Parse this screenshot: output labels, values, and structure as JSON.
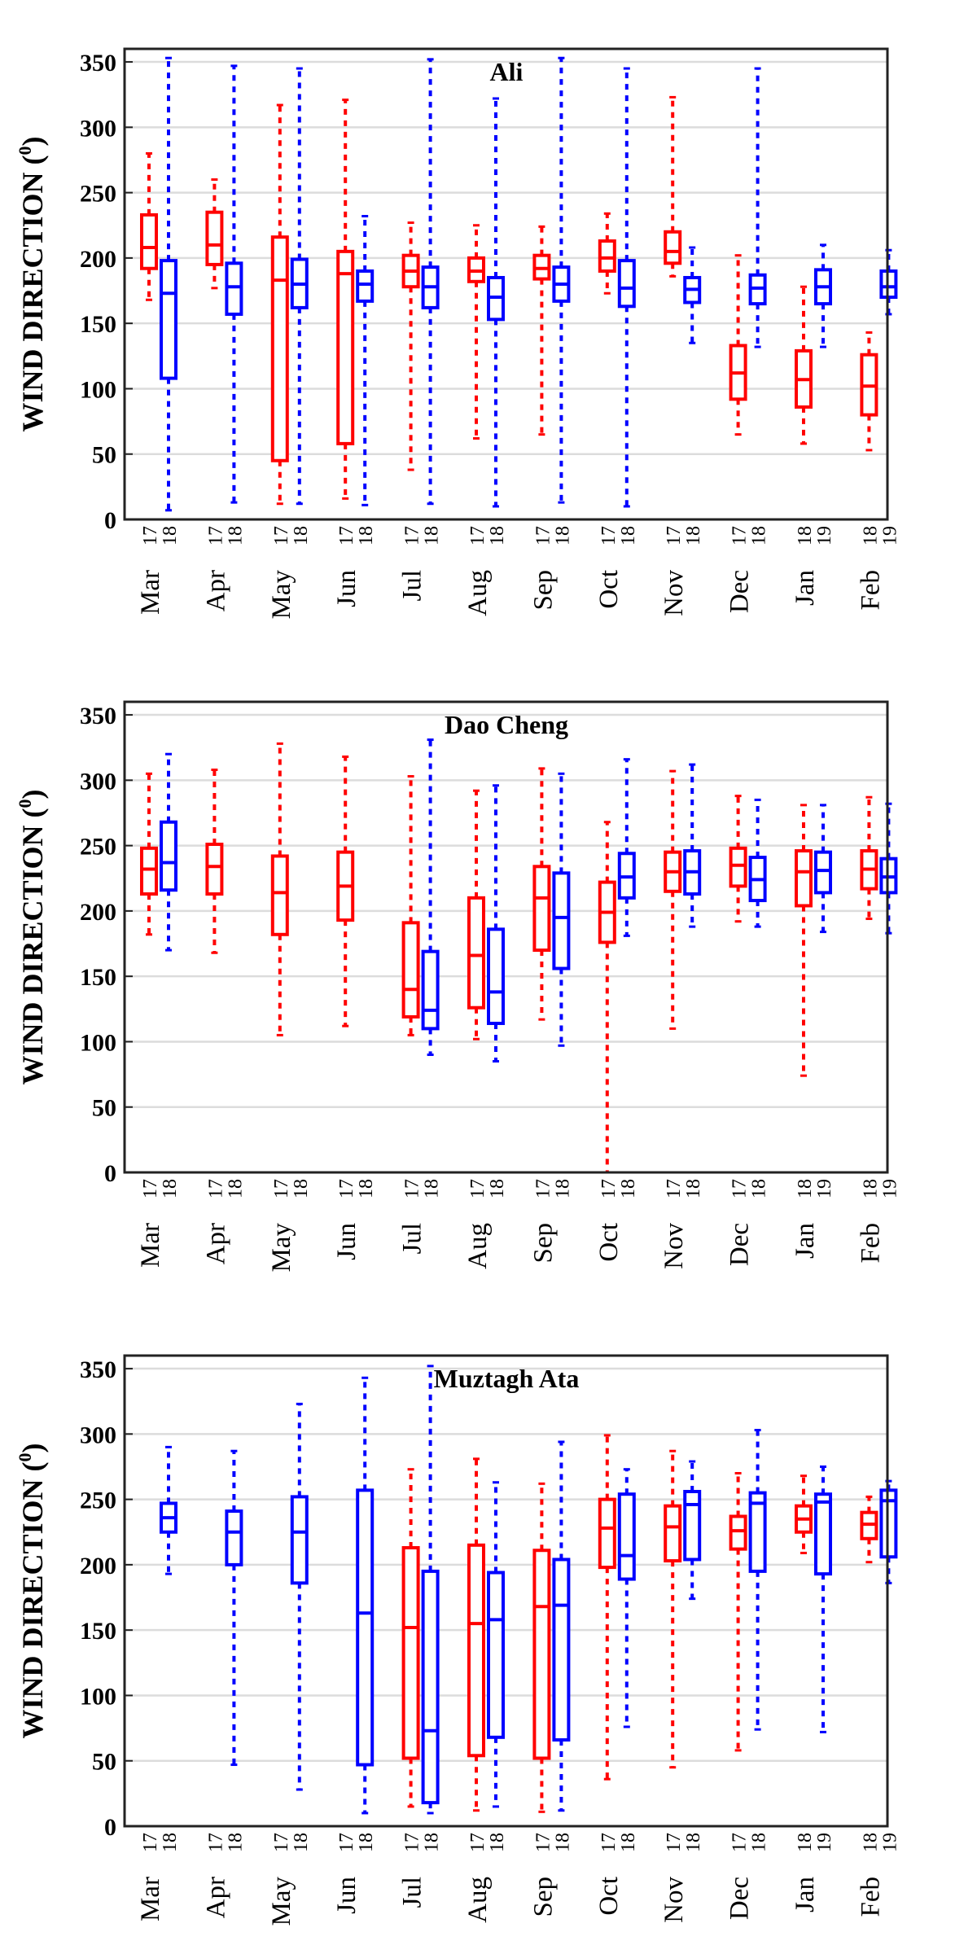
{
  "chart_data": [
    {
      "type": "boxplot",
      "title": "Ali",
      "ylabel": "WIND DIRECTION (",
      "ylabel_sup": "0",
      "ylabel_end": ")",
      "ylim": [
        0,
        360
      ],
      "yticks": [
        0,
        50,
        100,
        150,
        200,
        250,
        300,
        350
      ],
      "grid": true,
      "months": [
        "Mar",
        "Apr",
        "May",
        "Jun",
        "Jul",
        "Aug",
        "Sep",
        "Oct",
        "Nov",
        "Dec",
        "Jan",
        "Feb"
      ],
      "year_labels": [
        [
          "17",
          "18"
        ],
        [
          "17",
          "18"
        ],
        [
          "17",
          "18"
        ],
        [
          "17",
          "18"
        ],
        [
          "17",
          "18"
        ],
        [
          "17",
          "18"
        ],
        [
          "17",
          "18"
        ],
        [
          "17",
          "18"
        ],
        [
          "17",
          "18"
        ],
        [
          "17",
          "18"
        ],
        [
          "18",
          "19"
        ],
        [
          "18",
          "19"
        ]
      ],
      "series": [
        {
          "name": "first year",
          "color": "#ff0000",
          "boxes": [
            {
              "min": 168,
              "q1": 192,
              "med": 208,
              "q3": 233,
              "max": 280
            },
            {
              "min": 177,
              "q1": 195,
              "med": 210,
              "q3": 235,
              "max": 260
            },
            {
              "min": 12,
              "q1": 45,
              "med": 183,
              "q3": 216,
              "max": 317
            },
            {
              "min": 16,
              "q1": 58,
              "med": 188,
              "q3": 205,
              "max": 321
            },
            {
              "min": 38,
              "q1": 178,
              "med": 190,
              "q3": 202,
              "max": 227
            },
            {
              "min": 62,
              "q1": 182,
              "med": 190,
              "q3": 200,
              "max": 225
            },
            {
              "min": 65,
              "q1": 184,
              "med": 192,
              "q3": 202,
              "max": 224
            },
            {
              "min": 173,
              "q1": 190,
              "med": 200,
              "q3": 213,
              "max": 234
            },
            {
              "min": 186,
              "q1": 196,
              "med": 205,
              "q3": 220,
              "max": 323
            },
            {
              "min": 65,
              "q1": 92,
              "med": 112,
              "q3": 133,
              "max": 202
            },
            {
              "min": 58,
              "q1": 86,
              "med": 107,
              "q3": 129,
              "max": 178
            },
            {
              "min": 53,
              "q1": 80,
              "med": 102,
              "q3": 126,
              "max": 143
            }
          ]
        },
        {
          "name": "second year",
          "color": "#0000ff",
          "boxes": [
            {
              "min": 7,
              "q1": 108,
              "med": 173,
              "q3": 198,
              "max": 353
            },
            {
              "min": 13,
              "q1": 157,
              "med": 178,
              "q3": 196,
              "max": 347
            },
            {
              "min": 12,
              "q1": 162,
              "med": 180,
              "q3": 199,
              "max": 345
            },
            {
              "min": 11,
              "q1": 167,
              "med": 180,
              "q3": 190,
              "max": 232
            },
            {
              "min": 12,
              "q1": 162,
              "med": 178,
              "q3": 193,
              "max": 352
            },
            {
              "min": 10,
              "q1": 153,
              "med": 170,
              "q3": 185,
              "max": 322
            },
            {
              "min": 13,
              "q1": 167,
              "med": 180,
              "q3": 193,
              "max": 353
            },
            {
              "min": 10,
              "q1": 163,
              "med": 177,
              "q3": 198,
              "max": 345
            },
            {
              "min": 135,
              "q1": 166,
              "med": 176,
              "q3": 185,
              "max": 208
            },
            {
              "min": 132,
              "q1": 165,
              "med": 177,
              "q3": 187,
              "max": 345
            },
            {
              "min": 132,
              "q1": 165,
              "med": 178,
              "q3": 191,
              "max": 210
            },
            {
              "min": 157,
              "q1": 170,
              "med": 178,
              "q3": 190,
              "max": 206
            }
          ]
        }
      ]
    },
    {
      "type": "boxplot",
      "title": "Dao Cheng",
      "ylabel": "WIND DIRECTION (",
      "ylabel_sup": "0",
      "ylabel_end": ")",
      "ylim": [
        0,
        360
      ],
      "yticks": [
        0,
        50,
        100,
        150,
        200,
        250,
        300,
        350
      ],
      "grid": true,
      "months": [
        "Mar",
        "Apr",
        "May",
        "Jun",
        "Jul",
        "Aug",
        "Sep",
        "Oct",
        "Nov",
        "Dec",
        "Jan",
        "Feb"
      ],
      "year_labels": [
        [
          "17",
          "18"
        ],
        [
          "17",
          "18"
        ],
        [
          "17",
          "18"
        ],
        [
          "17",
          "18"
        ],
        [
          "17",
          "18"
        ],
        [
          "17",
          "18"
        ],
        [
          "17",
          "18"
        ],
        [
          "17",
          "18"
        ],
        [
          "17",
          "18"
        ],
        [
          "17",
          "18"
        ],
        [
          "18",
          "19"
        ],
        [
          "18",
          "19"
        ]
      ],
      "series": [
        {
          "name": "first year",
          "color": "#ff0000",
          "boxes": [
            {
              "min": 182,
              "q1": 213,
              "med": 232,
              "q3": 248,
              "max": 305
            },
            {
              "min": 168,
              "q1": 213,
              "med": 234,
              "q3": 251,
              "max": 308
            },
            {
              "min": 105,
              "q1": 182,
              "med": 214,
              "q3": 242,
              "max": 328
            },
            {
              "min": 112,
              "q1": 193,
              "med": 219,
              "q3": 245,
              "max": 318
            },
            {
              "min": 105,
              "q1": 119,
              "med": 140,
              "q3": 191,
              "max": 303
            },
            {
              "min": 102,
              "q1": 126,
              "med": 166,
              "q3": 210,
              "max": 292
            },
            {
              "min": 117,
              "q1": 170,
              "med": 210,
              "q3": 234,
              "max": 309
            },
            {
              "min": 0,
              "q1": 176,
              "med": 199,
              "q3": 222,
              "max": 268
            },
            {
              "min": 110,
              "q1": 215,
              "med": 230,
              "q3": 245,
              "max": 307
            },
            {
              "min": 192,
              "q1": 219,
              "med": 235,
              "q3": 248,
              "max": 288
            },
            {
              "min": 74,
              "q1": 204,
              "med": 230,
              "q3": 246,
              "max": 281
            },
            {
              "min": 194,
              "q1": 217,
              "med": 232,
              "q3": 246,
              "max": 287
            }
          ]
        },
        {
          "name": "second year",
          "color": "#0000ff",
          "boxes": [
            {
              "min": 170,
              "q1": 216,
              "med": 237,
              "q3": 268,
              "max": 320
            },
            null,
            null,
            null,
            {
              "min": 90,
              "q1": 110,
              "med": 124,
              "q3": 169,
              "max": 331
            },
            {
              "min": 85,
              "q1": 114,
              "med": 138,
              "q3": 186,
              "max": 296
            },
            {
              "min": 97,
              "q1": 156,
              "med": 195,
              "q3": 229,
              "max": 305
            },
            {
              "min": 181,
              "q1": 210,
              "med": 226,
              "q3": 244,
              "max": 316
            },
            {
              "min": 188,
              "q1": 213,
              "med": 230,
              "q3": 246,
              "max": 312
            },
            {
              "min": 188,
              "q1": 208,
              "med": 224,
              "q3": 241,
              "max": 285
            },
            {
              "min": 184,
              "q1": 214,
              "med": 231,
              "q3": 245,
              "max": 281
            },
            {
              "min": 183,
              "q1": 214,
              "med": 226,
              "q3": 240,
              "max": 282
            }
          ]
        }
      ]
    },
    {
      "type": "boxplot",
      "title": "Muztagh Ata",
      "ylabel": "WIND DIRECTION (",
      "ylabel_sup": "0",
      "ylabel_end": ")",
      "ylim": [
        0,
        360
      ],
      "yticks": [
        0,
        50,
        100,
        150,
        200,
        250,
        300,
        350
      ],
      "grid": true,
      "months": [
        "Mar",
        "Apr",
        "May",
        "Jun",
        "Jul",
        "Aug",
        "Sep",
        "Oct",
        "Nov",
        "Dec",
        "Jan",
        "Feb"
      ],
      "year_labels": [
        [
          "17",
          "18"
        ],
        [
          "17",
          "18"
        ],
        [
          "17",
          "18"
        ],
        [
          "17",
          "18"
        ],
        [
          "17",
          "18"
        ],
        [
          "17",
          "18"
        ],
        [
          "17",
          "18"
        ],
        [
          "17",
          "18"
        ],
        [
          "17",
          "18"
        ],
        [
          "17",
          "18"
        ],
        [
          "18",
          "19"
        ],
        [
          "18",
          "19"
        ]
      ],
      "series": [
        {
          "name": "first year",
          "color": "#ff0000",
          "boxes": [
            null,
            null,
            null,
            null,
            {
              "min": 15,
              "q1": 52,
              "med": 152,
              "q3": 213,
              "max": 273
            },
            {
              "min": 12,
              "q1": 54,
              "med": 155,
              "q3": 215,
              "max": 281
            },
            {
              "min": 11,
              "q1": 52,
              "med": 168,
              "q3": 211,
              "max": 262
            },
            {
              "min": 36,
              "q1": 198,
              "med": 228,
              "q3": 250,
              "max": 299
            },
            {
              "min": 45,
              "q1": 203,
              "med": 229,
              "q3": 245,
              "max": 287
            },
            {
              "min": 58,
              "q1": 212,
              "med": 226,
              "q3": 237,
              "max": 270
            },
            {
              "min": 209,
              "q1": 225,
              "med": 235,
              "q3": 245,
              "max": 268
            },
            {
              "min": 202,
              "q1": 220,
              "med": 231,
              "q3": 240,
              "max": 252
            }
          ]
        },
        {
          "name": "second year",
          "color": "#0000ff",
          "boxes": [
            {
              "min": 193,
              "q1": 225,
              "med": 236,
              "q3": 247,
              "max": 290
            },
            {
              "min": 47,
              "q1": 200,
              "med": 225,
              "q3": 241,
              "max": 287
            },
            {
              "min": 28,
              "q1": 186,
              "med": 225,
              "q3": 252,
              "max": 323
            },
            {
              "min": 10,
              "q1": 47,
              "med": 163,
              "q3": 257,
              "max": 343
            },
            {
              "min": 10,
              "q1": 18,
              "med": 73,
              "q3": 195,
              "max": 352
            },
            {
              "min": 15,
              "q1": 68,
              "med": 158,
              "q3": 194,
              "max": 263
            },
            {
              "min": 12,
              "q1": 66,
              "med": 169,
              "q3": 204,
              "max": 294
            },
            {
              "min": 76,
              "q1": 189,
              "med": 207,
              "q3": 254,
              "max": 273
            },
            {
              "min": 174,
              "q1": 204,
              "med": 246,
              "q3": 256,
              "max": 279
            },
            {
              "min": 74,
              "q1": 195,
              "med": 247,
              "q3": 255,
              "max": 303
            },
            {
              "min": 72,
              "q1": 193,
              "med": 248,
              "q3": 254,
              "max": 275
            },
            {
              "min": 186,
              "q1": 206,
              "med": 249,
              "q3": 257,
              "max": 264
            }
          ]
        }
      ]
    }
  ]
}
